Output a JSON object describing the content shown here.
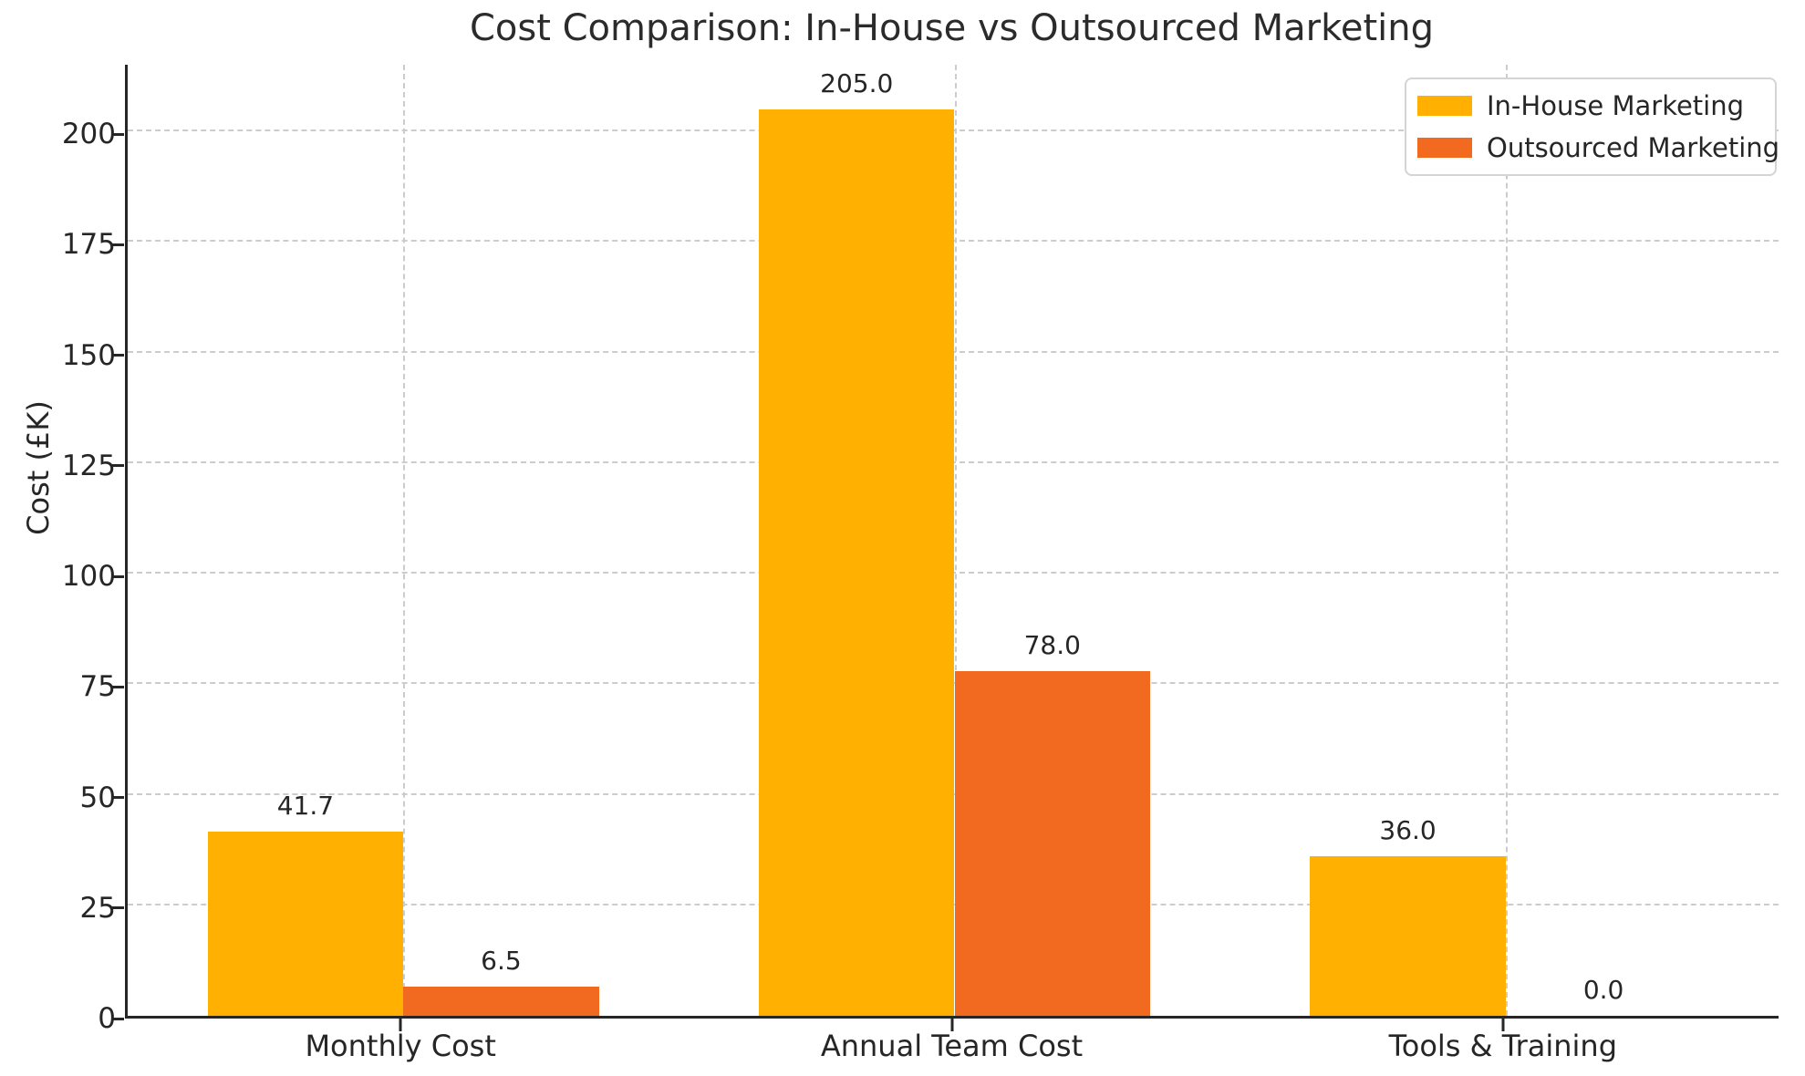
{
  "chart_data": {
    "type": "bar",
    "title": "Cost Comparison: In-House vs Outsourced Marketing",
    "xlabel": "",
    "ylabel": "Cost (£K)",
    "categories": [
      "Monthly Cost",
      "Annual Team Cost",
      "Tools & Training"
    ],
    "series": [
      {
        "name": "In-House Marketing",
        "color": "#FFB000",
        "values": [
          41.7,
          205.0,
          36.0
        ]
      },
      {
        "name": "Outsourced Marketing",
        "color": "#F26A1F",
        "values": [
          6.5,
          78.0,
          0.0
        ]
      }
    ],
    "value_label_decimals": 1,
    "y_ticks": [
      0,
      25,
      50,
      75,
      100,
      125,
      150,
      175,
      200
    ],
    "ylim": [
      0,
      215.7
    ],
    "grid": true,
    "grid_style": "dashed",
    "legend_position": "upper right",
    "bar_width_fraction": 0.355
  }
}
